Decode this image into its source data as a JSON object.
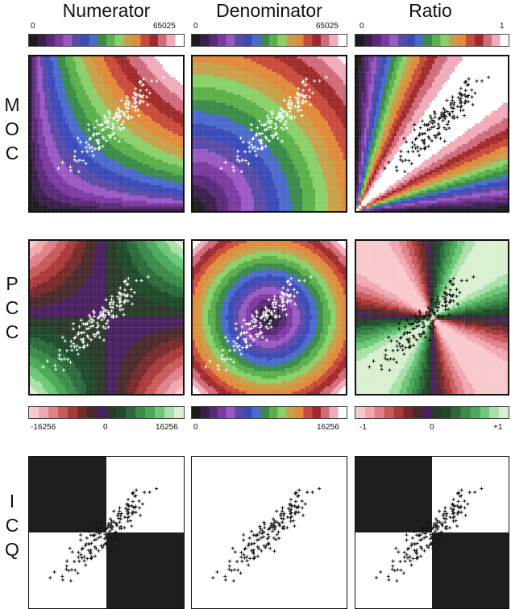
{
  "columns": [
    "Numerator",
    "Denominator",
    "Ratio"
  ],
  "rows": [
    {
      "letters": [
        "M",
        "O",
        "C"
      ]
    },
    {
      "letters": [
        "P",
        "C",
        "C"
      ]
    },
    {
      "letters": [
        "I",
        "C",
        "Q"
      ]
    }
  ],
  "top_colorbars": [
    {
      "min": "0",
      "max": "65025"
    },
    {
      "min": "0",
      "max": "65025"
    },
    {
      "min": "0",
      "max": "1"
    }
  ],
  "mid_colorbars": [
    {
      "min": "-16256",
      "mid": "0",
      "max": "16256"
    },
    {
      "min": "0",
      "max": "16256"
    },
    {
      "min": "-1",
      "mid": "0",
      "max": "+1"
    }
  ],
  "palette": {
    "rainbow": [
      "#1c1c1c",
      "#3a2048",
      "#5a2a78",
      "#7a3aa0",
      "#9a58c4",
      "#5a4aa8",
      "#3a4ab8",
      "#4a6acc",
      "#3a8a4a",
      "#5ab04a",
      "#8ad06a",
      "#c8a04a",
      "#e08a3a",
      "#c84a3a",
      "#a02a2a",
      "#d06a7a",
      "#f0aab8",
      "#ffffff"
    ],
    "diverging": [
      "#f8c8cc",
      "#f0a8b0",
      "#e0808a",
      "#c85a5a",
      "#a83a3a",
      "#782a2a",
      "#4a2a2a",
      "#4a2060",
      "#2a3a2a",
      "#1e4a2a",
      "#2a6a3a",
      "#3a8a48",
      "#4aa858",
      "#6ac878",
      "#a8e0a8",
      "#d8f0d0"
    ],
    "dark": "#1e1e1e",
    "light": "#ffffff"
  }
}
